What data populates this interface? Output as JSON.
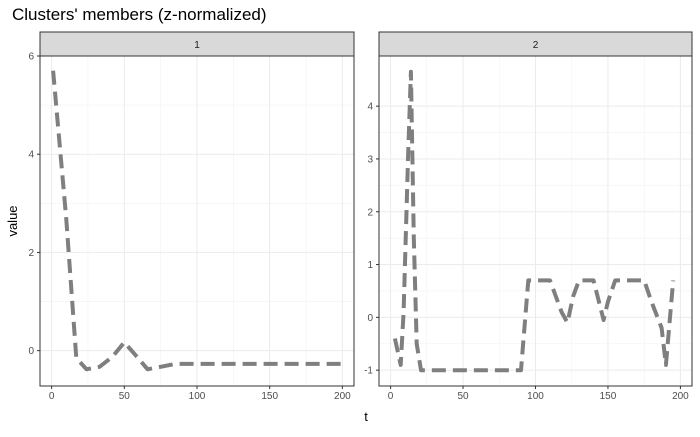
{
  "chart_data": {
    "type": "line",
    "title": "Clusters' members (z-normalized)",
    "xlabel": "t",
    "ylabel": "value",
    "line_style": "dashed",
    "line_color": "#7f7f7f",
    "grid": true,
    "panels": [
      {
        "label": "1",
        "xlim": [
          -8,
          208
        ],
        "ylim": [
          -0.72,
          6.0
        ],
        "xticks": [
          0,
          50,
          100,
          150,
          200
        ],
        "yticks": [
          0,
          2,
          4,
          6
        ],
        "series": [
          {
            "x": [
              1,
              10,
              17,
              24,
              33,
              42,
              50,
              58,
              66,
              75,
              85,
              100,
              125,
              150,
              175,
              200
            ],
            "y": [
              5.7,
              2.7,
              -0.15,
              -0.38,
              -0.33,
              -0.12,
              0.17,
              -0.1,
              -0.38,
              -0.33,
              -0.27,
              -0.27,
              -0.27,
              -0.27,
              -0.27,
              -0.27
            ]
          }
        ]
      },
      {
        "label": "2",
        "xlim": [
          -8,
          208
        ],
        "ylim": [
          -1.3,
          4.95
        ],
        "xticks": [
          0,
          50,
          100,
          150,
          200
        ],
        "yticks": [
          -1,
          0,
          1,
          2,
          3,
          4
        ],
        "series": [
          {
            "x": [
              3,
              7,
              9,
              12,
              14,
              16,
              18,
              21,
              25,
              50,
              75,
              90,
              95,
              100,
              110,
              118,
              122,
              126,
              130,
              140,
              147,
              150,
              155,
              160,
              175,
              180,
              187,
              190,
              195
            ],
            "y": [
              -0.4,
              -0.9,
              0.1,
              3.0,
              4.65,
              1.5,
              -0.5,
              -1.0,
              -1.0,
              -1.0,
              -1.0,
              -1.0,
              0.7,
              0.7,
              0.7,
              0.1,
              -0.1,
              0.4,
              0.7,
              0.7,
              -0.05,
              0.3,
              0.7,
              0.7,
              0.7,
              0.3,
              -0.2,
              -0.9,
              0.7
            ]
          }
        ]
      }
    ]
  }
}
